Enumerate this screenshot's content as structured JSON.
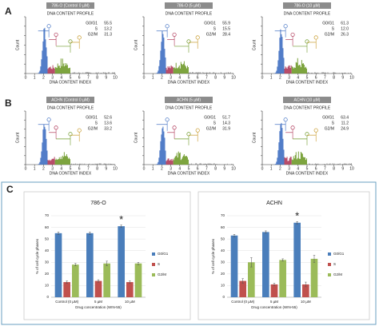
{
  "panel_labels": [
    "A",
    "B",
    "C"
  ],
  "histograms": {
    "subtitle": "DNA CONTENT PROFILE",
    "ylabel": "Count",
    "xlabel": "DNA CONTENT INDEX",
    "xticks": [
      0,
      1,
      2,
      3,
      4,
      5,
      6,
      7,
      8,
      9,
      10
    ],
    "panels": [
      {
        "title": "786-O (Control 0 µM)",
        "stats": [
          {
            "label": "G0/G1",
            "value": "55.5"
          },
          {
            "label": "S",
            "value": "13.2"
          },
          {
            "label": "G2/M",
            "value": "31.3"
          }
        ]
      },
      {
        "title": "786-O (5 µM)",
        "stats": [
          {
            "label": "G0/G1",
            "value": "55.9"
          },
          {
            "label": "S",
            "value": "15.5"
          },
          {
            "label": "G2/M",
            "value": "28.4"
          }
        ]
      },
      {
        "title": "786-O (10 µM)",
        "stats": [
          {
            "label": "G0/G1",
            "value": "61.3"
          },
          {
            "label": "S",
            "value": "12.0"
          },
          {
            "label": "G2/M",
            "value": "26.3"
          }
        ]
      },
      {
        "title": "ACHN (Control 0 µM)",
        "stats": [
          {
            "label": "G0/G1",
            "value": "52.6"
          },
          {
            "label": "S",
            "value": "13.6"
          },
          {
            "label": "G2/M",
            "value": "33.2"
          }
        ]
      },
      {
        "title": "ACHN (5 µM)",
        "stats": [
          {
            "label": "G0/G1",
            "value": "51.7"
          },
          {
            "label": "S",
            "value": "14.3"
          },
          {
            "label": "G2/M",
            "value": "31.9"
          }
        ]
      },
      {
        "title": "ACHN (10 µM)",
        "stats": [
          {
            "label": "G0/G1",
            "value": "63.4"
          },
          {
            "label": "S",
            "value": "11.2"
          },
          {
            "label": "G2/M",
            "value": "24.9"
          }
        ]
      }
    ]
  },
  "chart_data": [
    {
      "type": "bar",
      "title": "786-O",
      "ylabel": "% of cell cycle phases",
      "xlabel": "Drug concentration (WIN-55)",
      "categories": [
        "Control (0 µM)",
        "5 µM",
        "10 µM"
      ],
      "ylim": [
        0,
        70
      ],
      "yticks": [
        0,
        10,
        20,
        30,
        40,
        50,
        60,
        70
      ],
      "series": [
        {
          "name": "G0/G1",
          "color": "#4a7ebb",
          "values": [
            55,
            55,
            61
          ],
          "errors": [
            1,
            1,
            1
          ]
        },
        {
          "name": "S",
          "color": "#c0504d",
          "values": [
            13,
            14,
            13
          ],
          "errors": [
            1,
            1,
            1
          ]
        },
        {
          "name": "G2/M",
          "color": "#9bbb59",
          "values": [
            28,
            29,
            29
          ],
          "errors": [
            1,
            2,
            1
          ]
        }
      ],
      "annotation": {
        "text": "*",
        "category": "10 µM",
        "series": "G0/G1"
      }
    },
    {
      "type": "bar",
      "title": "ACHN",
      "ylabel": "% of cell cycle phases",
      "xlabel": "Drug concentration (WIN-55)",
      "categories": [
        "Control (0 µM)",
        "5 µM",
        "10 µM"
      ],
      "ylim": [
        0,
        70
      ],
      "yticks": [
        0,
        10,
        20,
        30,
        40,
        50,
        60,
        70
      ],
      "series": [
        {
          "name": "G0/G1",
          "color": "#4a7ebb",
          "values": [
            53,
            56,
            64
          ],
          "errors": [
            1,
            1,
            1
          ]
        },
        {
          "name": "S",
          "color": "#c0504d",
          "values": [
            14,
            11,
            11
          ],
          "errors": [
            2,
            1,
            2
          ]
        },
        {
          "name": "G2/M",
          "color": "#9bbb59",
          "values": [
            30,
            32,
            33
          ],
          "errors": [
            4,
            1,
            3
          ]
        }
      ],
      "annotation": {
        "text": "*",
        "category": "10 µM",
        "series": "G0/G1"
      }
    }
  ]
}
